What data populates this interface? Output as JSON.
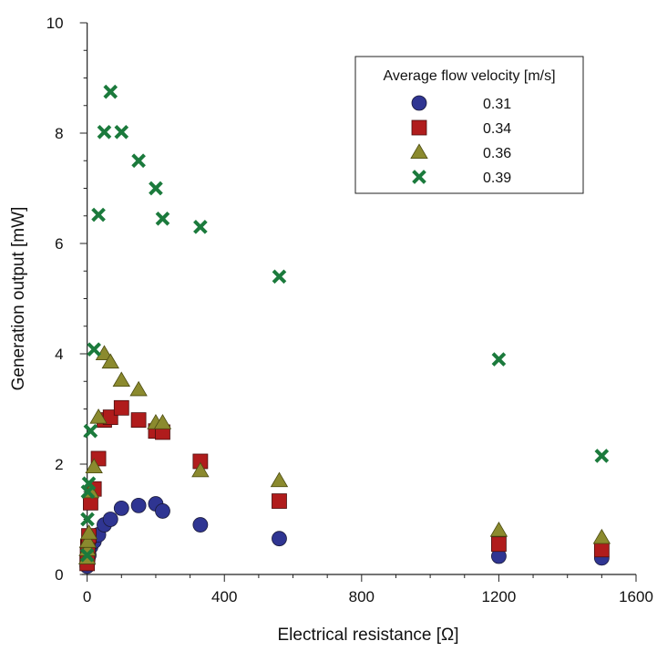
{
  "chart_data": {
    "type": "scatter",
    "title": "",
    "xlabel": "Electrical resistance [Ω]",
    "ylabel": "Generation output [mW]",
    "xlim": [
      -15,
      1600
    ],
    "ylim": [
      0,
      10
    ],
    "xticks": [
      0,
      400,
      800,
      1200,
      1600
    ],
    "yticks": [
      0,
      2,
      4,
      6,
      8,
      10
    ],
    "legend": {
      "title": "Average flow velocity [m/s]",
      "placement": "top-right"
    },
    "series": [
      {
        "name": "0.31",
        "marker": "circle",
        "color": "#2f3592",
        "x": [
          0,
          1,
          2,
          5,
          10,
          20,
          33,
          50,
          68,
          100,
          150,
          200,
          220,
          330,
          560,
          1200,
          1500
        ],
        "y": [
          0.15,
          0.2,
          0.28,
          0.35,
          0.5,
          0.6,
          0.72,
          0.9,
          1.0,
          1.2,
          1.25,
          1.28,
          1.15,
          0.9,
          0.65,
          0.33,
          0.3
        ]
      },
      {
        "name": "0.34",
        "marker": "square",
        "color": "#b01c1c",
        "x": [
          0,
          1,
          2,
          5,
          10,
          20,
          33,
          50,
          68,
          100,
          150,
          200,
          220,
          330,
          560,
          1200,
          1500
        ],
        "y": [
          0.2,
          0.35,
          0.5,
          0.7,
          1.3,
          1.55,
          2.1,
          2.8,
          2.85,
          3.02,
          2.8,
          2.6,
          2.58,
          2.05,
          1.33,
          0.55,
          0.45
        ]
      },
      {
        "name": "0.36",
        "marker": "triangle",
        "color": "#8b8a2e",
        "x": [
          0,
          1,
          2,
          5,
          10,
          20,
          33,
          50,
          68,
          100,
          150,
          200,
          220,
          330,
          560,
          1200,
          1500
        ],
        "y": [
          0.3,
          0.45,
          0.6,
          0.75,
          1.5,
          1.95,
          2.85,
          4.0,
          3.85,
          3.52,
          3.35,
          2.75,
          2.75,
          1.88,
          1.7,
          0.8,
          0.67
        ]
      },
      {
        "name": "0.39",
        "marker": "x",
        "color": "#1b7a3c",
        "x": [
          0,
          1,
          2,
          5,
          10,
          20,
          33,
          50,
          68,
          100,
          150,
          200,
          220,
          330,
          560,
          1200,
          1500
        ],
        "y": [
          0.35,
          1.0,
          1.5,
          1.65,
          2.6,
          4.08,
          6.52,
          8.02,
          8.75,
          8.02,
          7.5,
          7.0,
          6.45,
          6.3,
          5.4,
          3.9,
          2.15
        ]
      }
    ]
  }
}
